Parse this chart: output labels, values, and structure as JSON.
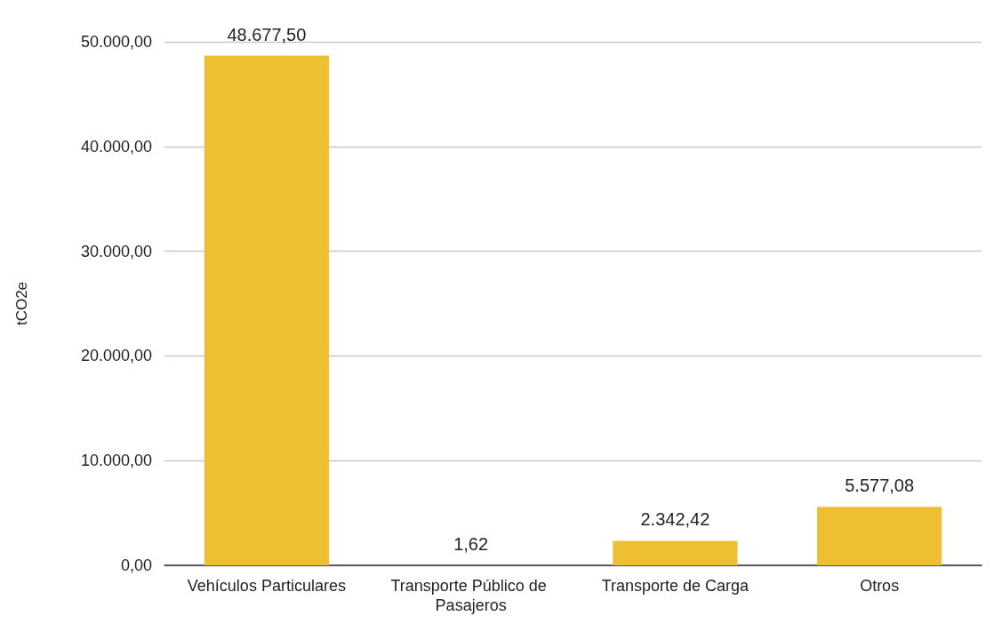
{
  "chart_data": {
    "type": "bar",
    "ylabel": "tCO2e",
    "categories": [
      "Vehículos Particulares",
      "Transporte Público de Pasajeros",
      "Transporte de Carga",
      "Otros"
    ],
    "values": [
      48677.5,
      1.62,
      2342.42,
      5577.08
    ],
    "value_labels": [
      "48.677,50",
      "1,62",
      "2.342,42",
      "5.577,08"
    ],
    "color": "#efbf33",
    "ylim": [
      0,
      50000
    ],
    "yticks": [
      {
        "value": 0,
        "label": "0,00"
      },
      {
        "value": 10000,
        "label": "10.000,00"
      },
      {
        "value": 20000,
        "label": "20.000,00"
      },
      {
        "value": 30000,
        "label": "30.000,00"
      },
      {
        "value": 40000,
        "label": "40.000,00"
      },
      {
        "value": 50000,
        "label": "50.000,00"
      }
    ],
    "grid": "y"
  }
}
